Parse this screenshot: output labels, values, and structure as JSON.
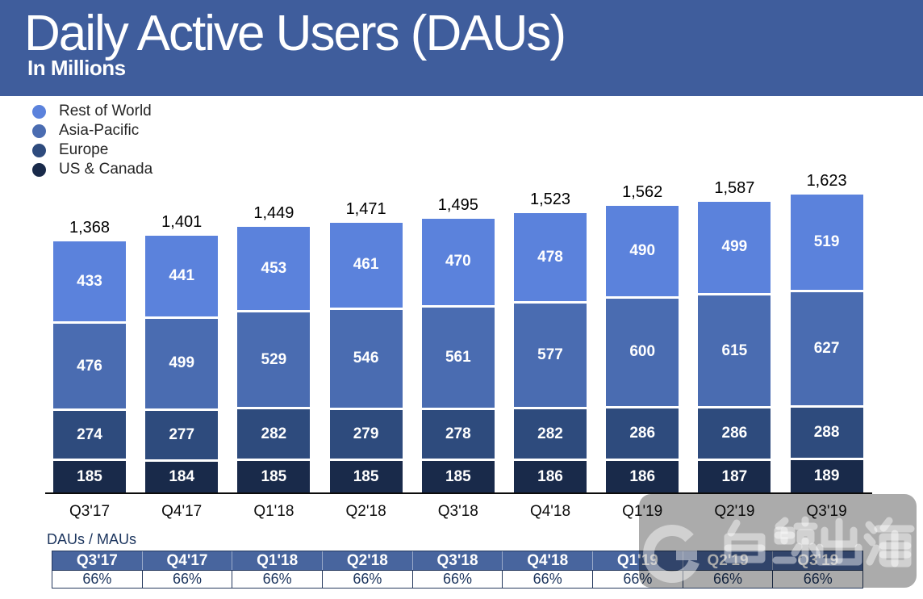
{
  "header": {
    "title": "Daily Active Users (DAUs)",
    "subtitle": "In Millions",
    "band_color": "#3f5d9c"
  },
  "legend": [
    {
      "label": "Rest of World",
      "color": "#5b82dc"
    },
    {
      "label": "Asia-Pacific",
      "color": "#4a6cb1"
    },
    {
      "label": "Europe",
      "color": "#2e4b7d"
    },
    {
      "label": "US & Canada",
      "color": "#192a4a"
    }
  ],
  "chart_data": {
    "type": "bar",
    "stacked": true,
    "title": "Daily Active Users (DAUs)",
    "subtitle": "In Millions",
    "categories": [
      "Q3'17",
      "Q4'17",
      "Q1'18",
      "Q2'18",
      "Q3'18",
      "Q4'18",
      "Q1'19",
      "Q2'19",
      "Q3'19"
    ],
    "series": [
      {
        "name": "US & Canada",
        "color": "#192a4a",
        "values": [
          185,
          184,
          185,
          185,
          185,
          186,
          186,
          187,
          189
        ]
      },
      {
        "name": "Europe",
        "color": "#2e4b7d",
        "values": [
          274,
          277,
          282,
          279,
          278,
          282,
          286,
          286,
          288
        ]
      },
      {
        "name": "Asia-Pacific",
        "color": "#4a6cb1",
        "values": [
          476,
          499,
          529,
          546,
          561,
          577,
          600,
          615,
          627
        ]
      },
      {
        "name": "Rest of World",
        "color": "#5b82dc",
        "values": [
          433,
          441,
          453,
          461,
          470,
          478,
          490,
          499,
          519
        ]
      }
    ],
    "totals": [
      "1,368",
      "1,401",
      "1,449",
      "1,471",
      "1,495",
      "1,523",
      "1,562",
      "1,587",
      "1,623"
    ],
    "ylim": [
      0,
      1700
    ],
    "grid": false,
    "legend_position": "top-left"
  },
  "ratio_table": {
    "label": "DAUs / MAUs",
    "columns": [
      "Q3'17",
      "Q4'17",
      "Q1'18",
      "Q2'18",
      "Q3'18",
      "Q4'18",
      "Q1'19",
      "Q2'19",
      "Q3'19"
    ],
    "values": [
      "66%",
      "66%",
      "66%",
      "66%",
      "66%",
      "66%",
      "66%",
      "66%",
      "66%"
    ],
    "header_color": "#48659e"
  },
  "watermark": {
    "logo_letter": "G",
    "brand_text": "白鲸出海"
  }
}
